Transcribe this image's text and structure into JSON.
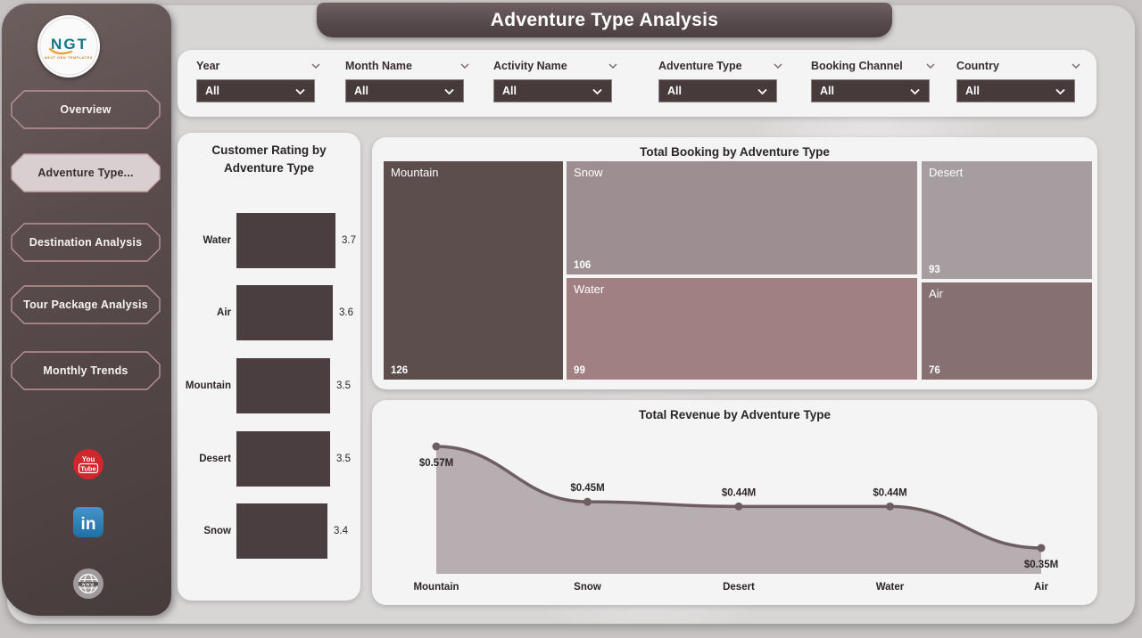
{
  "app": {
    "title": "Adventure Type Analysis"
  },
  "sidebar": {
    "logo": {
      "text": "NGT",
      "subtext": "NEXT GEN TEMPLATES"
    },
    "items": [
      {
        "label": "Overview",
        "active": false
      },
      {
        "label": "Adventure Type...",
        "active": true
      },
      {
        "label": "Destination Analysis",
        "active": false
      },
      {
        "label": "Tour Package Analysis",
        "active": false
      },
      {
        "label": "Monthly Trends",
        "active": false
      }
    ],
    "social": [
      {
        "name": "youtube",
        "line1": "You",
        "line2": "Tube"
      },
      {
        "name": "linkedin",
        "label": "in"
      },
      {
        "name": "website",
        "label": "www"
      }
    ]
  },
  "filters": {
    "items": [
      {
        "label": "Year",
        "value": "All"
      },
      {
        "label": "Month Name",
        "value": "All"
      },
      {
        "label": "Activity Name",
        "value": "All"
      },
      {
        "label": "Adventure Type",
        "value": "All"
      },
      {
        "label": "Booking Channel",
        "value": "All"
      },
      {
        "label": "Country",
        "value": "All"
      }
    ]
  },
  "chart_data": [
    {
      "id": "rating",
      "type": "bar",
      "orientation": "horizontal",
      "title": "Customer Rating by Adventure Type",
      "categories": [
        "Water",
        "Air",
        "Mountain",
        "Desert",
        "Snow"
      ],
      "values": [
        3.7,
        3.6,
        3.5,
        3.5,
        3.4
      ],
      "xlim": [
        0,
        3.7
      ],
      "bar_color": "#4a3e40",
      "grid": false
    },
    {
      "id": "booking",
      "type": "treemap",
      "title": "Total Booking by Adventure Type",
      "items": [
        {
          "label": "Mountain",
          "value": 126,
          "color": "#5d4e4e",
          "rect": {
            "x": 0.0,
            "y": 0.0,
            "w": 0.255,
            "h": 1.0
          }
        },
        {
          "label": "Snow",
          "value": 106,
          "color": "#9c8e91",
          "rect": {
            "x": 0.2576,
            "y": 0.0,
            "w": 0.4962,
            "h": 0.522
          }
        },
        {
          "label": "Water",
          "value": 99,
          "color": "#a08083",
          "rect": {
            "x": 0.2576,
            "y": 0.5304,
            "w": 0.4962,
            "h": 0.4696
          }
        },
        {
          "label": "Desert",
          "value": 93,
          "color": "#a59da0",
          "rect": {
            "x": 0.7575,
            "y": 0.0,
            "w": 0.2425,
            "h": 0.5425
          }
        },
        {
          "label": "Air",
          "value": 76,
          "color": "#877072",
          "rect": {
            "x": 0.7575,
            "y": 0.5506,
            "w": 0.2425,
            "h": 0.4494
          }
        }
      ]
    },
    {
      "id": "revenue",
      "type": "area",
      "title": "Total Revenue by Adventure Type",
      "categories": [
        "Mountain",
        "Snow",
        "Desert",
        "Water",
        "Air"
      ],
      "values": [
        0.57,
        0.45,
        0.44,
        0.44,
        0.35
      ],
      "point_labels": [
        "$0.57M",
        "$0.45M",
        "$0.44M",
        "$0.44M",
        "$0.35M"
      ],
      "line_color": "#6f5e61",
      "fill_color": "#b6aeb1",
      "ylabel": "",
      "xlabel": "",
      "grid": false
    }
  ],
  "colors": {
    "page_bg": "#c8c4c4",
    "dashboard_bg": "#d8d5d5",
    "card_bg": "#f5f4f4",
    "sidebar_dark": "#473c3c",
    "accent_dark": "#4a3e40",
    "active_button_bg": "#d9cfd1",
    "youtube_red": "#d0262c",
    "linkedin_blue": "#2e7cb4"
  }
}
